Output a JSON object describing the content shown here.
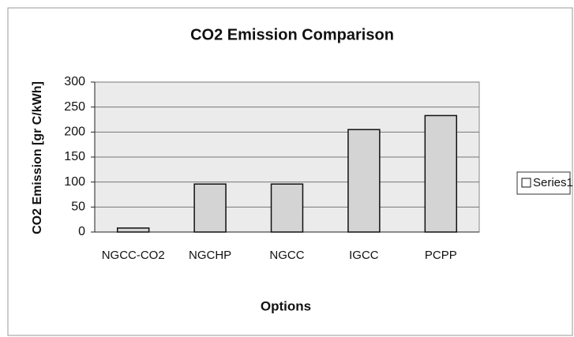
{
  "chart_data": {
    "type": "bar",
    "title": "CO2 Emission Comparison",
    "x_label": "Options",
    "y_label": "CO2 Emission [gr C/kWh]",
    "categories": [
      "NGCC-CO2",
      "NGCHP",
      "NGCC",
      "IGCC",
      "PCPP"
    ],
    "series": [
      {
        "name": "Series1",
        "color": "#d4d4d4",
        "values": [
          8,
          96,
          96,
          205,
          233
        ]
      }
    ],
    "ylim": [
      0,
      300
    ],
    "yticks": [
      0,
      50,
      100,
      150,
      200,
      250,
      300
    ],
    "grid": true,
    "legend": "right"
  }
}
